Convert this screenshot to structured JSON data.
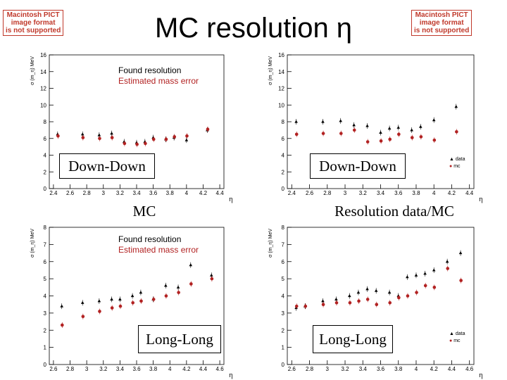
{
  "slide": {
    "title": "MC resolution η",
    "pict_left": [
      "Macintosh PICT",
      "image format",
      "is not supported"
    ],
    "pict_right": [
      "Macintosh PICT",
      "image format",
      "is not supported"
    ]
  },
  "panels": [
    {
      "label": "Down-Down",
      "caption": "MC",
      "legend_lines": [
        "Found resolution",
        "Estimated mass error"
      ],
      "legend_colors": [
        "#000000",
        "#b22222"
      ]
    },
    {
      "label": "Down-Down",
      "caption": "Resolution data/MC",
      "legend_lines": [
        "data",
        "mc"
      ],
      "legend_colors": [
        "#000000",
        "#b22222"
      ]
    },
    {
      "label": "Long-Long",
      "caption": "",
      "legend_lines": [
        "Found resolution",
        "Estimated mass error"
      ],
      "legend_colors": [
        "#000000",
        "#b22222"
      ]
    },
    {
      "label": "Long-Long",
      "caption": "",
      "legend_lines": [
        "data",
        "mc"
      ],
      "legend_colors": [
        "#000000",
        "#b22222"
      ]
    }
  ],
  "chart_data": [
    {
      "type": "scatter",
      "title": "",
      "xlabel": "η",
      "ylabel": "σ (m_η) MeV",
      "xlim": [
        2.35,
        4.45
      ],
      "ylim": [
        0,
        16
      ],
      "xticks": [
        2.4,
        2.6,
        2.8,
        3,
        3.2,
        3.4,
        3.6,
        3.8,
        4,
        4.2,
        4.4
      ],
      "yticks": [
        0,
        2,
        4,
        6,
        8,
        10,
        12,
        14,
        16
      ],
      "series": [
        {
          "name": "Found resolution",
          "color": "#000000",
          "x": [
            2.45,
            2.75,
            2.95,
            3.1,
            3.25,
            3.4,
            3.5,
            3.6,
            3.75,
            3.85,
            4.0,
            4.25
          ],
          "y": [
            6.5,
            6.5,
            6.4,
            6.6,
            5.6,
            5.5,
            5.6,
            6.1,
            5.9,
            6.1,
            5.8,
            7.0
          ]
        },
        {
          "name": "Estimated mass error",
          "color": "#b22222",
          "x": [
            2.45,
            2.75,
            2.95,
            3.1,
            3.25,
            3.4,
            3.5,
            3.6,
            3.75,
            3.85,
            4.0,
            4.25
          ],
          "y": [
            6.3,
            6.1,
            6.0,
            6.1,
            5.4,
            5.3,
            5.4,
            5.9,
            5.9,
            6.2,
            6.3,
            7.1
          ]
        }
      ]
    },
    {
      "type": "scatter",
      "title": "",
      "xlabel": "η",
      "ylabel": "σ (m_η) MeV",
      "xlim": [
        2.35,
        4.45
      ],
      "ylim": [
        0,
        16
      ],
      "xticks": [
        2.4,
        2.6,
        2.8,
        3,
        3.2,
        3.4,
        3.6,
        3.8,
        4,
        4.2,
        4.4
      ],
      "yticks": [
        0,
        2,
        4,
        6,
        8,
        10,
        12,
        14,
        16
      ],
      "series": [
        {
          "name": "data",
          "color": "#000000",
          "x": [
            2.45,
            2.75,
            2.95,
            3.1,
            3.25,
            3.4,
            3.5,
            3.6,
            3.75,
            3.85,
            4.0,
            4.25
          ],
          "y": [
            8.0,
            8.0,
            8.1,
            7.6,
            7.5,
            6.7,
            7.2,
            7.3,
            7.0,
            7.4,
            8.2,
            9.8
          ]
        },
        {
          "name": "mc",
          "color": "#b22222",
          "x": [
            2.45,
            2.75,
            2.95,
            3.1,
            3.25,
            3.4,
            3.5,
            3.6,
            3.75,
            3.85,
            4.0,
            4.25
          ],
          "y": [
            6.5,
            6.6,
            6.6,
            7.0,
            5.6,
            5.7,
            5.9,
            6.5,
            6.1,
            6.2,
            5.8,
            6.8
          ]
        }
      ]
    },
    {
      "type": "scatter",
      "title": "",
      "xlabel": "η",
      "ylabel": "σ (m_η) MeV",
      "xlim": [
        2.55,
        4.65
      ],
      "ylim": [
        0,
        8
      ],
      "xticks": [
        2.6,
        2.8,
        3,
        3.2,
        3.4,
        3.6,
        3.8,
        4,
        4.2,
        4.4,
        4.6
      ],
      "yticks": [
        0,
        1,
        2,
        3,
        4,
        5,
        6,
        7,
        8
      ],
      "series": [
        {
          "name": "Found resolution",
          "color": "#000000",
          "x": [
            2.7,
            2.95,
            3.15,
            3.3,
            3.4,
            3.55,
            3.65,
            3.8,
            3.95,
            4.1,
            4.25,
            4.5
          ],
          "y": [
            3.4,
            3.6,
            3.7,
            3.8,
            3.8,
            4.0,
            4.2,
            3.8,
            4.6,
            4.5,
            5.8,
            5.2
          ]
        },
        {
          "name": "Estimated mass error",
          "color": "#b22222",
          "x": [
            2.7,
            2.95,
            3.15,
            3.3,
            3.4,
            3.55,
            3.65,
            3.8,
            3.95,
            4.1,
            4.25,
            4.5
          ],
          "y": [
            2.3,
            2.8,
            3.1,
            3.3,
            3.4,
            3.6,
            3.7,
            3.8,
            4.0,
            4.2,
            4.7,
            5.0
          ]
        }
      ]
    },
    {
      "type": "scatter",
      "title": "",
      "xlabel": "η",
      "ylabel": "σ (m_η) MeV",
      "xlim": [
        2.55,
        4.65
      ],
      "ylim": [
        0,
        8
      ],
      "xticks": [
        2.6,
        2.8,
        3,
        3.2,
        3.4,
        3.6,
        3.8,
        4,
        4.2,
        4.4,
        4.6
      ],
      "yticks": [
        0,
        1,
        2,
        3,
        4,
        5,
        6,
        7,
        8
      ],
      "series": [
        {
          "name": "data",
          "color": "#000000",
          "x": [
            2.65,
            2.75,
            2.95,
            3.1,
            3.25,
            3.35,
            3.45,
            3.55,
            3.7,
            3.8,
            3.9,
            4.0,
            4.1,
            4.2,
            4.35,
            4.5
          ],
          "y": [
            3.3,
            3.4,
            3.7,
            3.8,
            4.0,
            4.2,
            4.4,
            4.3,
            4.2,
            4.0,
            5.1,
            5.2,
            5.3,
            5.5,
            6.0,
            6.5
          ]
        },
        {
          "name": "mc",
          "color": "#b22222",
          "x": [
            2.65,
            2.75,
            2.95,
            3.1,
            3.25,
            3.35,
            3.45,
            3.55,
            3.7,
            3.8,
            3.9,
            4.0,
            4.1,
            4.2,
            4.35,
            4.5
          ],
          "y": [
            3.4,
            3.4,
            3.5,
            3.6,
            3.6,
            3.7,
            3.8,
            3.5,
            3.6,
            3.9,
            4.0,
            4.2,
            4.6,
            4.5,
            5.6,
            4.9
          ]
        }
      ]
    }
  ]
}
